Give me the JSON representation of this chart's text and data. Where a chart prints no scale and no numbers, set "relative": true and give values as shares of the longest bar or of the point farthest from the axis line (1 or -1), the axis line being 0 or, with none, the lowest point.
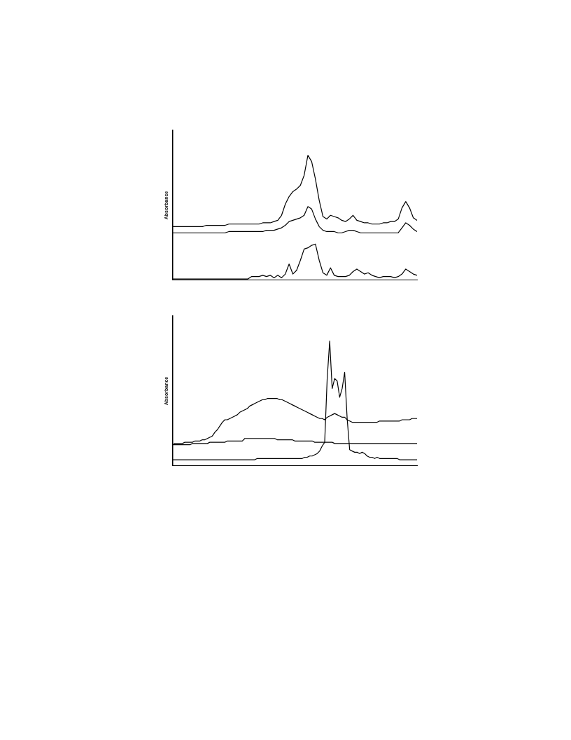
{
  "chart_data": [
    {
      "type": "line",
      "ylabel": "Absorbance",
      "relative": true,
      "legend": false,
      "grid": false,
      "tick_labels": false,
      "marker": "none",
      "categories": [
        null,
        null,
        null,
        null,
        null,
        null,
        null,
        null,
        null,
        null,
        null,
        null,
        null,
        null,
        null,
        null,
        null,
        null,
        null,
        null,
        null,
        null,
        null,
        null,
        null,
        null,
        null,
        null,
        null,
        null,
        null,
        null,
        null,
        null,
        null,
        null,
        null,
        null,
        null,
        null,
        null,
        null,
        null,
        null,
        null,
        null,
        null,
        null,
        null,
        null,
        null,
        null,
        null,
        null,
        null,
        null,
        null,
        null,
        null,
        null,
        null,
        null,
        null,
        null,
        null,
        null
      ],
      "series": [
        {
          "color": "#000000",
          "values": [
            0.43,
            0.43,
            0.43,
            0.43,
            0.43,
            0.43,
            0.43,
            0.43,
            0.43,
            0.44,
            0.44,
            0.44,
            0.44,
            0.44,
            0.44,
            0.45,
            0.45,
            0.45,
            0.45,
            0.45,
            0.45,
            0.45,
            0.45,
            0.45,
            0.46,
            0.46,
            0.46,
            0.47,
            0.48,
            0.52,
            0.61,
            0.67,
            0.71,
            0.73,
            0.76,
            0.84,
            1.0,
            0.95,
            0.81,
            0.64,
            0.51,
            0.49,
            0.52,
            0.51,
            0.5,
            0.48,
            0.47,
            0.49,
            0.52,
            0.48,
            0.47,
            0.46,
            0.46,
            0.45,
            0.45,
            0.45,
            0.46,
            0.46,
            0.47,
            0.47,
            0.49,
            0.58,
            0.63,
            0.58,
            0.5,
            0.48
          ]
        },
        {
          "color": "#000000",
          "values": [
            0.38,
            0.38,
            0.38,
            0.38,
            0.38,
            0.38,
            0.38,
            0.38,
            0.38,
            0.38,
            0.38,
            0.38,
            0.38,
            0.38,
            0.38,
            0.39,
            0.39,
            0.39,
            0.39,
            0.39,
            0.39,
            0.39,
            0.39,
            0.39,
            0.39,
            0.4,
            0.4,
            0.4,
            0.41,
            0.42,
            0.44,
            0.47,
            0.48,
            0.49,
            0.5,
            0.52,
            0.59,
            0.57,
            0.49,
            0.43,
            0.4,
            0.39,
            0.39,
            0.39,
            0.38,
            0.38,
            0.39,
            0.4,
            0.4,
            0.39,
            0.38,
            0.38,
            0.38,
            0.38,
            0.38,
            0.38,
            0.38,
            0.38,
            0.38,
            0.38,
            0.38,
            0.42,
            0.46,
            0.44,
            0.41,
            0.39
          ]
        },
        {
          "color": "#000000",
          "values": [
            0.01,
            0.01,
            0.01,
            0.01,
            0.01,
            0.01,
            0.01,
            0.01,
            0.01,
            0.01,
            0.01,
            0.01,
            0.01,
            0.01,
            0.01,
            0.01,
            0.01,
            0.01,
            0.01,
            0.01,
            0.01,
            0.03,
            0.03,
            0.03,
            0.04,
            0.03,
            0.04,
            0.02,
            0.04,
            0.02,
            0.05,
            0.13,
            0.05,
            0.08,
            0.16,
            0.25,
            0.26,
            0.28,
            0.29,
            0.16,
            0.06,
            0.04,
            0.1,
            0.04,
            0.03,
            0.03,
            0.03,
            0.04,
            0.07,
            0.09,
            0.07,
            0.05,
            0.06,
            0.04,
            0.03,
            0.02,
            0.03,
            0.03,
            0.03,
            0.02,
            0.03,
            0.05,
            0.09,
            0.07,
            0.05,
            0.04
          ]
        }
      ]
    },
    {
      "type": "line",
      "ylabel": "Absorbance",
      "relative": true,
      "legend": false,
      "grid": false,
      "tick_labels": false,
      "marker": "none",
      "categories": [
        null,
        null,
        null,
        null,
        null,
        null,
        null,
        null,
        null,
        null,
        null,
        null,
        null,
        null,
        null,
        null,
        null,
        null,
        null,
        null,
        null,
        null,
        null,
        null,
        null,
        null,
        null,
        null,
        null,
        null,
        null,
        null,
        null,
        null,
        null,
        null,
        null,
        null,
        null,
        null,
        null,
        null,
        null,
        null,
        null,
        null,
        null,
        null,
        null,
        null,
        null,
        null,
        null,
        null,
        null,
        null,
        null,
        null,
        null,
        null,
        null,
        null,
        null,
        null,
        null,
        null,
        null,
        null,
        null,
        null,
        null,
        null,
        null,
        null,
        null,
        null,
        null,
        null,
        null,
        null,
        null,
        null,
        null,
        null,
        null,
        null,
        null,
        null,
        null,
        null,
        null,
        null,
        null,
        null,
        null,
        null,
        null,
        null,
        null
      ],
      "series": [
        {
          "color": "#000000",
          "values": [
            0.17,
            0.18,
            0.18,
            0.18,
            0.18,
            0.19,
            0.19,
            0.19,
            0.19,
            0.2,
            0.2,
            0.2,
            0.21,
            0.21,
            0.22,
            0.23,
            0.24,
            0.27,
            0.29,
            0.32,
            0.35,
            0.37,
            0.37,
            0.38,
            0.39,
            0.4,
            0.41,
            0.43,
            0.44,
            0.45,
            0.46,
            0.48,
            0.49,
            0.5,
            0.51,
            0.52,
            0.53,
            0.53,
            0.54,
            0.54,
            0.54,
            0.54,
            0.54,
            0.53,
            0.53,
            0.52,
            0.51,
            0.5,
            0.49,
            0.48,
            0.47,
            0.46,
            0.45,
            0.44,
            0.43,
            0.42,
            0.41,
            0.4,
            0.39,
            0.38,
            0.38,
            0.37,
            0.39,
            0.4,
            0.41,
            0.42,
            0.41,
            0.4,
            0.39,
            0.39,
            0.37,
            0.36,
            0.35,
            0.35,
            0.35,
            0.35,
            0.35,
            0.35,
            0.35,
            0.35,
            0.35,
            0.35,
            0.35,
            0.36,
            0.36,
            0.36,
            0.36,
            0.36,
            0.36,
            0.36,
            0.36,
            0.36,
            0.37,
            0.37,
            0.37,
            0.37,
            0.38,
            0.38,
            0.38
          ]
        },
        {
          "color": "#000000",
          "values": [
            0.17,
            0.17,
            0.17,
            0.17,
            0.17,
            0.17,
            0.17,
            0.17,
            0.18,
            0.18,
            0.18,
            0.18,
            0.18,
            0.18,
            0.18,
            0.19,
            0.19,
            0.19,
            0.19,
            0.19,
            0.19,
            0.19,
            0.2,
            0.2,
            0.2,
            0.2,
            0.2,
            0.2,
            0.2,
            0.22,
            0.22,
            0.22,
            0.22,
            0.22,
            0.22,
            0.22,
            0.22,
            0.22,
            0.22,
            0.22,
            0.22,
            0.22,
            0.21,
            0.21,
            0.21,
            0.21,
            0.21,
            0.21,
            0.21,
            0.2,
            0.2,
            0.2,
            0.2,
            0.2,
            0.2,
            0.2,
            0.2,
            0.19,
            0.19,
            0.19,
            0.19,
            0.19,
            0.19,
            0.19,
            0.19,
            0.18,
            0.18,
            0.18,
            0.18,
            0.18,
            0.18,
            0.18,
            0.18,
            0.18,
            0.18,
            0.18,
            0.18,
            0.18,
            0.18,
            0.18,
            0.18,
            0.18,
            0.18,
            0.18,
            0.18,
            0.18,
            0.18,
            0.18,
            0.18,
            0.18,
            0.18,
            0.18,
            0.18,
            0.18,
            0.18,
            0.18,
            0.18,
            0.18,
            0.18
          ]
        },
        {
          "color": "#000000",
          "values": [
            0.05,
            0.05,
            0.05,
            0.05,
            0.05,
            0.05,
            0.05,
            0.05,
            0.05,
            0.05,
            0.05,
            0.05,
            0.05,
            0.05,
            0.05,
            0.05,
            0.05,
            0.05,
            0.05,
            0.05,
            0.05,
            0.05,
            0.05,
            0.05,
            0.05,
            0.05,
            0.05,
            0.05,
            0.05,
            0.05,
            0.05,
            0.05,
            0.05,
            0.05,
            0.06,
            0.06,
            0.06,
            0.06,
            0.06,
            0.06,
            0.06,
            0.06,
            0.06,
            0.06,
            0.06,
            0.06,
            0.06,
            0.06,
            0.06,
            0.06,
            0.06,
            0.06,
            0.06,
            0.07,
            0.07,
            0.08,
            0.08,
            0.09,
            0.1,
            0.12,
            0.16,
            0.19,
            0.7,
            1.0,
            0.62,
            0.7,
            0.68,
            0.55,
            0.62,
            0.75,
            0.38,
            0.13,
            0.12,
            0.11,
            0.11,
            0.1,
            0.11,
            0.1,
            0.08,
            0.07,
            0.07,
            0.06,
            0.07,
            0.06,
            0.06,
            0.06,
            0.06,
            0.06,
            0.06,
            0.06,
            0.06,
            0.05,
            0.05,
            0.05,
            0.05,
            0.05,
            0.05,
            0.05,
            0.05
          ]
        }
      ]
    }
  ]
}
